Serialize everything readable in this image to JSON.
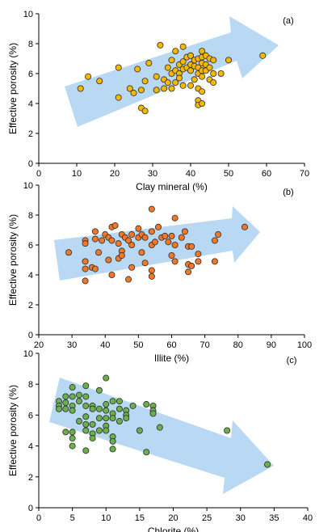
{
  "chart_data": [
    {
      "type": "scatter",
      "panel_label": "(a)",
      "xlabel": "Clay mineral (%)",
      "ylabel": "Effective porosity (%)",
      "xlim": [
        0,
        70
      ],
      "ylim": [
        0,
        10
      ],
      "xticks": [
        0,
        10,
        20,
        30,
        40,
        50,
        60,
        70
      ],
      "yticks": [
        0,
        2,
        4,
        6,
        8,
        10
      ],
      "marker_color": "#f5b800",
      "trend": "increasing",
      "arrow_color": "#b9d8f3",
      "points": [
        [
          11,
          5.0
        ],
        [
          13,
          5.8
        ],
        [
          16,
          5.5
        ],
        [
          21,
          6.4
        ],
        [
          21,
          4.4
        ],
        [
          24,
          5.0
        ],
        [
          25,
          4.7
        ],
        [
          26,
          6.3
        ],
        [
          27,
          4.9
        ],
        [
          27,
          3.7
        ],
        [
          28,
          5.5
        ],
        [
          28,
          3.5
        ],
        [
          29,
          6.7
        ],
        [
          31,
          5.8
        ],
        [
          31,
          4.9
        ],
        [
          32,
          7.9
        ],
        [
          33,
          5.6
        ],
        [
          33,
          5.0
        ],
        [
          34,
          6.4
        ],
        [
          34,
          5.4
        ],
        [
          35,
          6.9
        ],
        [
          35,
          6.0
        ],
        [
          35,
          5.0
        ],
        [
          36,
          7.5
        ],
        [
          36,
          6.2
        ],
        [
          36,
          5.4
        ],
        [
          37,
          6.0
        ],
        [
          37,
          5.7
        ],
        [
          37,
          6.6
        ],
        [
          38,
          7.8
        ],
        [
          38,
          6.8
        ],
        [
          38,
          6.3
        ],
        [
          38,
          5.2
        ],
        [
          39,
          7.1
        ],
        [
          39,
          6.4
        ],
        [
          40,
          7.2
        ],
        [
          40,
          6.6
        ],
        [
          40,
          6.2
        ],
        [
          40,
          5.2
        ],
        [
          41,
          6.9
        ],
        [
          41,
          6.5
        ],
        [
          41,
          5.6
        ],
        [
          42,
          7.0
        ],
        [
          42,
          6.4
        ],
        [
          42,
          6.0
        ],
        [
          42,
          5.0
        ],
        [
          42,
          4.2
        ],
        [
          42,
          3.9
        ],
        [
          43,
          7.5
        ],
        [
          43,
          7.1
        ],
        [
          43,
          6.7
        ],
        [
          43,
          6.2
        ],
        [
          43,
          5.8
        ],
        [
          43,
          4.8
        ],
        [
          43,
          4.0
        ],
        [
          44,
          7.2
        ],
        [
          44,
          6.6
        ],
        [
          44,
          6.2
        ],
        [
          45,
          7.0
        ],
        [
          45,
          6.4
        ],
        [
          45,
          5.6
        ],
        [
          46,
          6.9
        ],
        [
          46,
          6.0
        ],
        [
          46,
          5.4
        ],
        [
          48,
          6.0
        ],
        [
          50,
          6.9
        ],
        [
          59,
          7.2
        ]
      ]
    },
    {
      "type": "scatter",
      "panel_label": "(b)",
      "xlabel": "Illite (%)",
      "ylabel": "Effective porosity (%)",
      "xlim": [
        20,
        100
      ],
      "ylim": [
        0,
        10
      ],
      "xticks": [
        20,
        30,
        40,
        50,
        60,
        70,
        80,
        90,
        100
      ],
      "yticks": [
        0,
        2,
        4,
        6,
        8,
        10
      ],
      "marker_color": "#f07828",
      "trend": "increasing",
      "arrow_color": "#b9d8f3",
      "points": [
        [
          29,
          5.5
        ],
        [
          34,
          6.3
        ],
        [
          34,
          6.1
        ],
        [
          34,
          4.9
        ],
        [
          34,
          4.4
        ],
        [
          34,
          3.6
        ],
        [
          36,
          4.5
        ],
        [
          37,
          6.9
        ],
        [
          37,
          6.4
        ],
        [
          37,
          4.4
        ],
        [
          38,
          5.5
        ],
        [
          39,
          6.3
        ],
        [
          40,
          6.7
        ],
        [
          41,
          6.5
        ],
        [
          41,
          5.0
        ],
        [
          42,
          7.2
        ],
        [
          42,
          6.3
        ],
        [
          42,
          4.0
        ],
        [
          43,
          7.3
        ],
        [
          44,
          6.1
        ],
        [
          44,
          5.1
        ],
        [
          45,
          6.7
        ],
        [
          45,
          5.6
        ],
        [
          45,
          5.3
        ],
        [
          46,
          6.5
        ],
        [
          47,
          6.3
        ],
        [
          47,
          3.7
        ],
        [
          48,
          6.7
        ],
        [
          48,
          6.0
        ],
        [
          48,
          4.5
        ],
        [
          50,
          7.1
        ],
        [
          50,
          6.5
        ],
        [
          51,
          6.7
        ],
        [
          51,
          5.5
        ],
        [
          52,
          6.5
        ],
        [
          52,
          4.8
        ],
        [
          54,
          8.4
        ],
        [
          54,
          6.9
        ],
        [
          54,
          6.0
        ],
        [
          54,
          4.3
        ],
        [
          54,
          3.9
        ],
        [
          55,
          6.2
        ],
        [
          56,
          7.2
        ],
        [
          57,
          6.5
        ],
        [
          58,
          6.6
        ],
        [
          59,
          6.2
        ],
        [
          60,
          6.6
        ],
        [
          60,
          5.3
        ],
        [
          61,
          7.8
        ],
        [
          61,
          6.0
        ],
        [
          61,
          4.9
        ],
        [
          63,
          6.5
        ],
        [
          64,
          6.9
        ],
        [
          65,
          5.9
        ],
        [
          65,
          4.7
        ],
        [
          65,
          4.2
        ],
        [
          66,
          5.9
        ],
        [
          66,
          4.6
        ],
        [
          68,
          5.4
        ],
        [
          68,
          4.9
        ],
        [
          73,
          6.3
        ],
        [
          73,
          4.9
        ],
        [
          74,
          6.7
        ],
        [
          82,
          7.2
        ]
      ]
    },
    {
      "type": "scatter",
      "panel_label": "(c)",
      "xlabel": "Chlorite (%)",
      "ylabel": "Effective porosity (%)",
      "xlim": [
        0,
        40
      ],
      "ylim": [
        0,
        10
      ],
      "xticks": [
        0,
        5,
        10,
        15,
        20,
        25,
        30,
        35,
        40
      ],
      "yticks": [
        0,
        2,
        4,
        6,
        8,
        10
      ],
      "marker_color": "#6ab04c",
      "trend": "decreasing",
      "arrow_color": "#b9d8f3",
      "points": [
        [
          3,
          6.9
        ],
        [
          3,
          6.6
        ],
        [
          3,
          6.4
        ],
        [
          4,
          7.2
        ],
        [
          4,
          6.8
        ],
        [
          4,
          6.4
        ],
        [
          4,
          4.9
        ],
        [
          5,
          7.8
        ],
        [
          5,
          7.2
        ],
        [
          5,
          6.6
        ],
        [
          5,
          6.3
        ],
        [
          5,
          4.9
        ],
        [
          5,
          4.5
        ],
        [
          5,
          4.0
        ],
        [
          6,
          7.3
        ],
        [
          6,
          6.9
        ],
        [
          6,
          5.6
        ],
        [
          7,
          7.9
        ],
        [
          7,
          7.2
        ],
        [
          7,
          6.6
        ],
        [
          7,
          5.9
        ],
        [
          7,
          5.4
        ],
        [
          7,
          5.0
        ],
        [
          7,
          3.7
        ],
        [
          8,
          6.6
        ],
        [
          8,
          6.4
        ],
        [
          8,
          5.4
        ],
        [
          8,
          4.8
        ],
        [
          8,
          4.5
        ],
        [
          9,
          7.6
        ],
        [
          9,
          6.4
        ],
        [
          9,
          5.8
        ],
        [
          9,
          5.0
        ],
        [
          10,
          8.4
        ],
        [
          10,
          6.7
        ],
        [
          10,
          6.3
        ],
        [
          10,
          5.8
        ],
        [
          10,
          5.3
        ],
        [
          10,
          5.0
        ],
        [
          11,
          6.9
        ],
        [
          11,
          6.1
        ],
        [
          11,
          5.8
        ],
        [
          11,
          4.6
        ],
        [
          11,
          4.3
        ],
        [
          11,
          3.8
        ],
        [
          12,
          6.9
        ],
        [
          12,
          6.4
        ],
        [
          12,
          5.6
        ],
        [
          13,
          6.3
        ],
        [
          13,
          6.0
        ],
        [
          13,
          5.8
        ],
        [
          14,
          6.6
        ],
        [
          15,
          5.0
        ],
        [
          16,
          6.7
        ],
        [
          16,
          3.6
        ],
        [
          17,
          6.6
        ],
        [
          17,
          6.3
        ],
        [
          17,
          6.1
        ],
        [
          18,
          5.2
        ],
        [
          28,
          5.0
        ],
        [
          34,
          2.8
        ]
      ]
    }
  ]
}
